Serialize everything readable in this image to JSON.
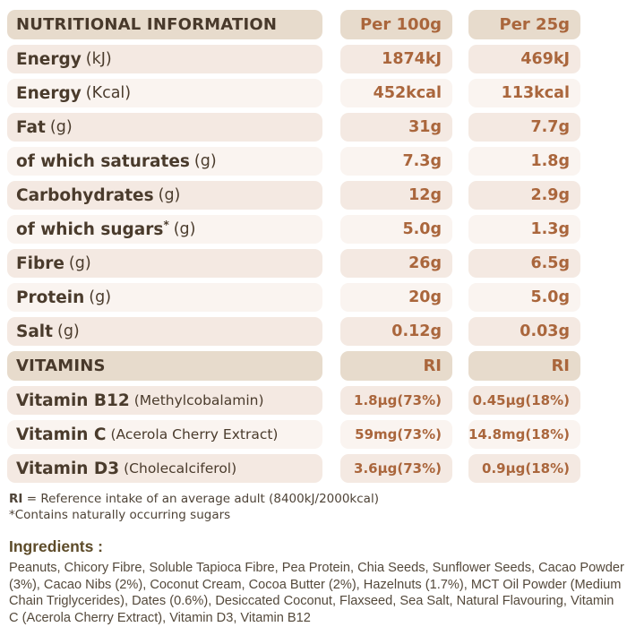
{
  "colors": {
    "header_bg": "#e7dbcc",
    "row_dark_bg": "#f4e9e2",
    "row_light_bg": "#faf4f0",
    "label_text": "#4a3b2c",
    "accent_text": "#aa663c"
  },
  "table": {
    "header": {
      "title": "NUTRITIONAL INFORMATION",
      "col1": "Per 100g",
      "col2": "Per 25g"
    },
    "rows": [
      {
        "label": "Energy",
        "unit": "(kJ)",
        "per100": "1874kJ",
        "per25": "469kJ"
      },
      {
        "label": "Energy",
        "unit": "(Kcal)",
        "per100": "452kcal",
        "per25": "113kcal"
      },
      {
        "label": "Fat",
        "unit": "(g)",
        "per100": "31g",
        "per25": "7.7g"
      },
      {
        "label": "of which saturates",
        "unit": "(g)",
        "per100": "7.3g",
        "per25": "1.8g"
      },
      {
        "label": "Carbohydrates",
        "unit": "(g)",
        "per100": "12g",
        "per25": "2.9g"
      },
      {
        "label": "of which sugars",
        "sup": "*",
        "unit": "(g)",
        "per100": "5.0g",
        "per25": "1.3g"
      },
      {
        "label": "Fibre",
        "unit": "(g)",
        "per100": "26g",
        "per25": "6.5g"
      },
      {
        "label": "Protein",
        "unit": "(g)",
        "per100": "20g",
        "per25": "5.0g"
      },
      {
        "label": "Salt",
        "unit": "(g)",
        "per100": "0.12g",
        "per25": "0.03g"
      }
    ],
    "vitamins_header": {
      "title": "VITAMINS",
      "col1": "RI",
      "col2": "RI"
    },
    "vitamin_rows": [
      {
        "label": "Vitamin B12",
        "unit": "(Methylcobalamin)",
        "per100": "1.8µg(73%)",
        "per25": "0.45µg(18%)"
      },
      {
        "label": "Vitamin C",
        "unit": "(Acerola Cherry Extract)",
        "per100": "59mg(73%)",
        "per25": "14.8mg(18%)"
      },
      {
        "label": "Vitamin D3",
        "unit": "(Cholecalciferol)",
        "per100": "3.6µg(73%)",
        "per25": "0.9µg(18%)"
      }
    ]
  },
  "footnotes": {
    "ri_bold": "RI",
    "ri_rest": " = Reference intake of an average adult (8400kJ/2000kcal)",
    "sugars_note": "*Contains naturally occurring sugars"
  },
  "ingredients": {
    "heading": "Ingredients :",
    "text": "Peanuts, Chicory Fibre, Soluble Tapioca Fibre, Pea Protein, Chia Seeds, Sunflower Seeds, Cacao Powder (3%), Cacao Nibs (2%), Coconut Cream, Cocoa Butter (2%), Hazelnuts (1.7%), MCT Oil Powder (Medium Chain Triglycerides), Dates (0.6%), Desiccated Coconut, Flaxseed, Sea Salt, Natural Flavouring, Vitamin C (Acerola Cherry Extract), Vitamin D3, Vitamin B12"
  }
}
